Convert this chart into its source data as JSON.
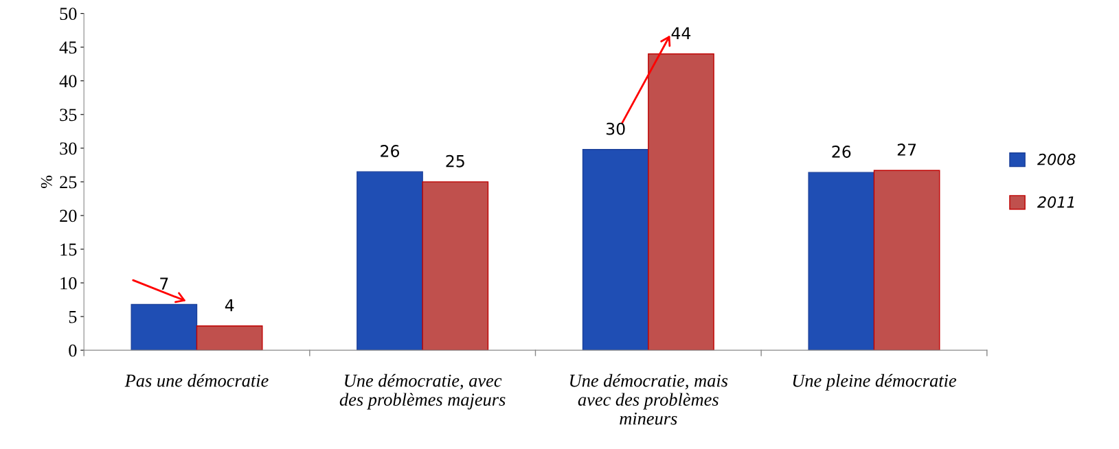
{
  "chart_data": {
    "type": "bar",
    "ylabel": "%",
    "categories": [
      "Pas une démocratie",
      "Une démocratie, avec\ndes problèmes majeurs",
      "Une démocratie, mais\navec des problèmes\nmineurs",
      "Une pleine démocratie"
    ],
    "series": [
      {
        "name": "2008",
        "color": "#1f4eb4",
        "values": [
          6.8,
          26.5,
          29.8,
          26.4
        ],
        "value_labels": [
          "7",
          "26",
          "30",
          "26"
        ]
      },
      {
        "name": "2011",
        "color": "#c0504d",
        "values": [
          3.6,
          25.0,
          44.0,
          26.7
        ],
        "value_labels": [
          "4",
          "25",
          "44",
          "27"
        ]
      }
    ],
    "ylim": [
      0,
      50
    ],
    "yticks": [
      0,
      5,
      10,
      15,
      20,
      25,
      30,
      35,
      40,
      45,
      50
    ],
    "grid": false,
    "legend": "right"
  }
}
